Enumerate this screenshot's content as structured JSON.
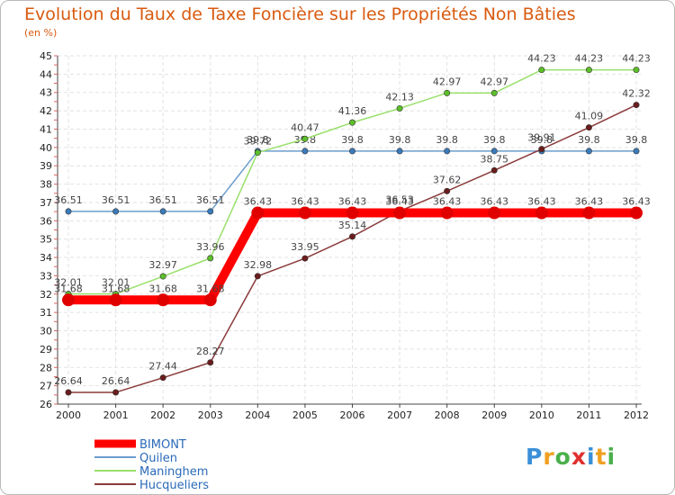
{
  "chart_data": {
    "type": "line",
    "title": "Evolution du Taux de Taxe Foncière sur les Propriétés Non Bâties",
    "subtitle": "(en %)",
    "x": [
      "2000",
      "2001",
      "2002",
      "2003",
      "2004",
      "2005",
      "2006",
      "2007",
      "2008",
      "2009",
      "2010",
      "2011",
      "2012"
    ],
    "ylim": [
      26,
      45
    ],
    "yticks": [
      26,
      27,
      28,
      29,
      30,
      31,
      32,
      33,
      34,
      35,
      36,
      37,
      38,
      39,
      40,
      41,
      42,
      43,
      44,
      45
    ],
    "series": [
      {
        "name": "BIMONT",
        "color": "#ff0000",
        "point_color": "#e00000",
        "values": [
          31.68,
          31.68,
          31.68,
          31.68,
          36.43,
          36.43,
          36.43,
          36.43,
          36.43,
          36.43,
          36.43,
          36.43,
          36.43
        ],
        "labels": [
          "31.68",
          "31.68",
          "31.68",
          "31.68",
          "36.43",
          "36.43",
          "36.43",
          "36.43",
          "36.43",
          "36.43",
          "36.43",
          "36.43",
          "36.43"
        ]
      },
      {
        "name": "Quilen",
        "color": "#6b9dcc",
        "point_color": "#3a7ab8",
        "values": [
          36.51,
          36.51,
          36.51,
          36.51,
          39.8,
          39.8,
          39.8,
          39.8,
          39.8,
          39.8,
          39.8,
          39.8,
          39.8
        ],
        "labels": [
          "36.51",
          "36.51",
          "36.51",
          "36.51",
          "39.8",
          "39.8",
          "39.8",
          "39.8",
          "39.8",
          "39.8",
          "39.8",
          "39.8",
          "39.8"
        ]
      },
      {
        "name": "Maninghem",
        "color": "#99e06a",
        "point_color": "#5cbf2a",
        "values": [
          32.01,
          32.01,
          32.97,
          33.96,
          39.72,
          40.47,
          41.36,
          42.13,
          42.97,
          42.97,
          44.23,
          44.23,
          44.23
        ],
        "labels": [
          "32.01",
          "32.01",
          "32.97",
          "33.96",
          "39.72",
          "40.47",
          "41.36",
          "42.13",
          "42.97",
          "42.97",
          "44.23",
          "44.23",
          "44.23"
        ]
      },
      {
        "name": "Hucqueliers",
        "color": "#8a3a3a",
        "point_color": "#6b1c1c",
        "values": [
          26.64,
          26.64,
          27.44,
          28.27,
          32.98,
          33.95,
          35.14,
          36.53,
          37.62,
          38.75,
          39.91,
          41.09,
          42.32
        ],
        "labels": [
          "26.64",
          "26.64",
          "27.44",
          "28.27",
          "32.98",
          "33.95",
          "35.14",
          "36.53",
          "37.62",
          "38.75",
          "39.91",
          "41.09",
          "42.32"
        ]
      }
    ]
  },
  "logo": {
    "text": "Proxiti"
  }
}
